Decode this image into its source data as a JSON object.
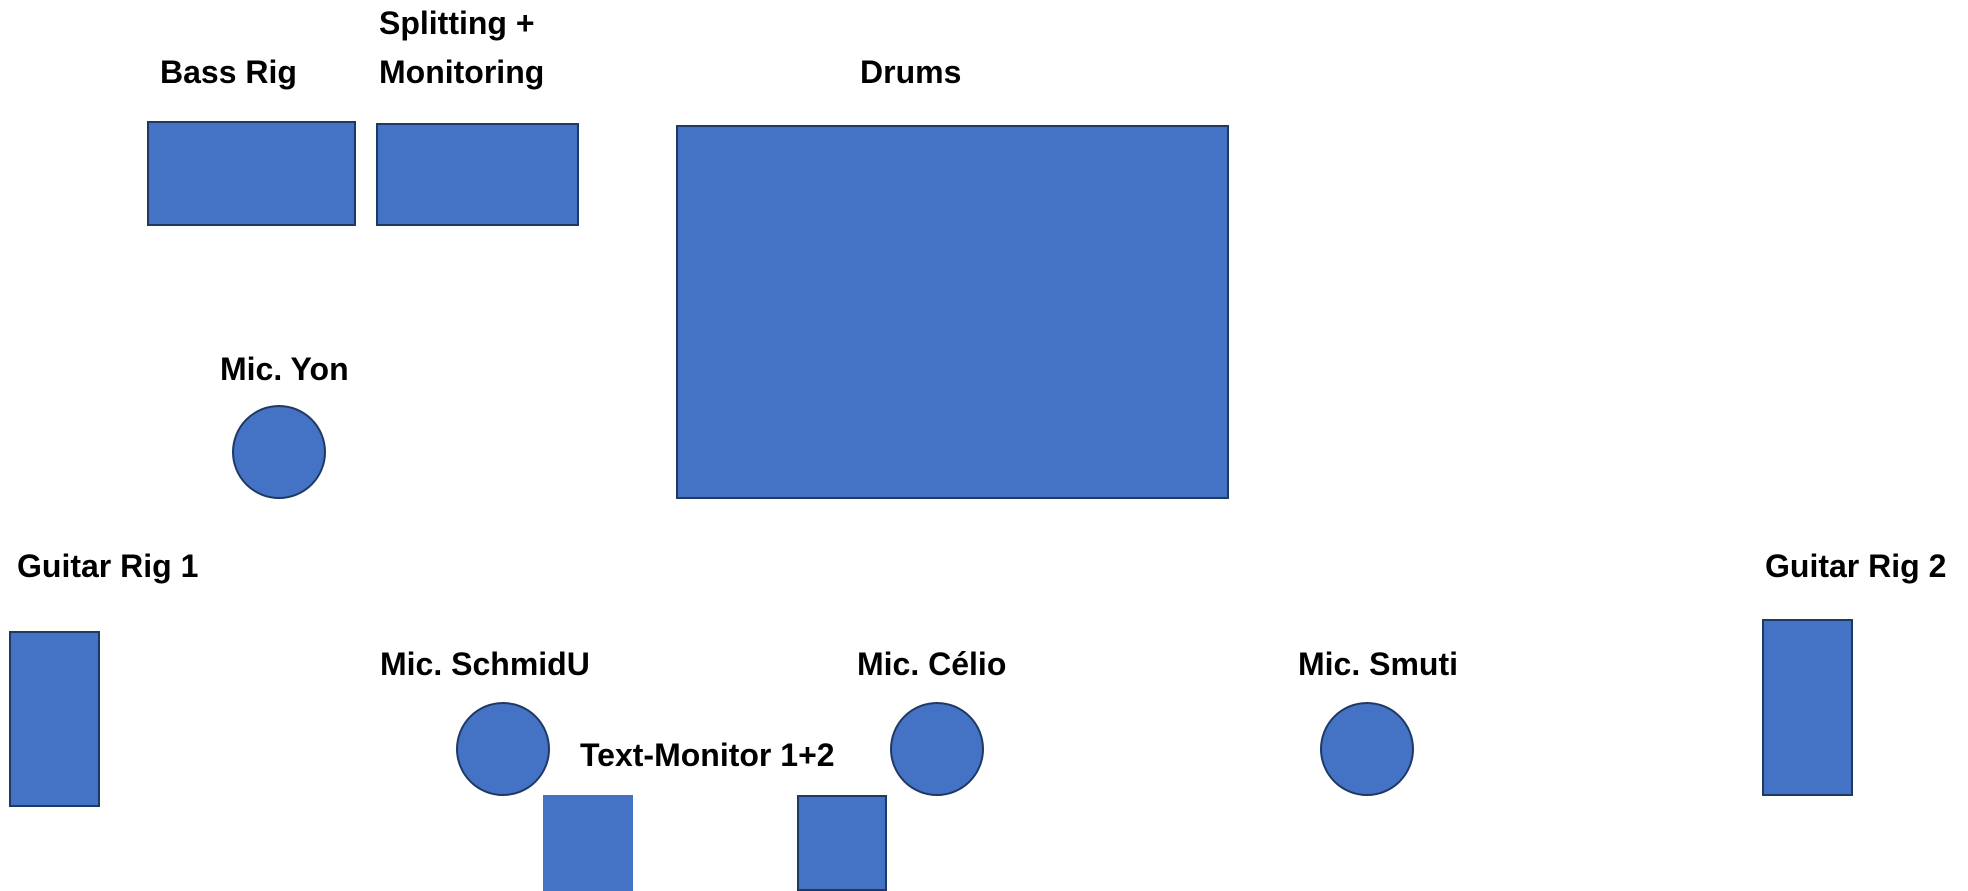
{
  "fill_color": "#4472C4",
  "stroke_color": "#1F3864",
  "labels": {
    "bass_rig": "Bass Rig",
    "splitting_line1": "Splitting +",
    "splitting_line2": "Monitoring",
    "drums": "Drums",
    "mic_yon": "Mic. Yon",
    "guitar_rig_1": "Guitar Rig 1",
    "guitar_rig_2": "Guitar Rig 2",
    "mic_schmidu": "Mic. SchmidU",
    "mic_celio": "Mic. Célio",
    "mic_smuti": "Mic. Smuti",
    "text_monitor": "Text-Monitor 1+2"
  }
}
